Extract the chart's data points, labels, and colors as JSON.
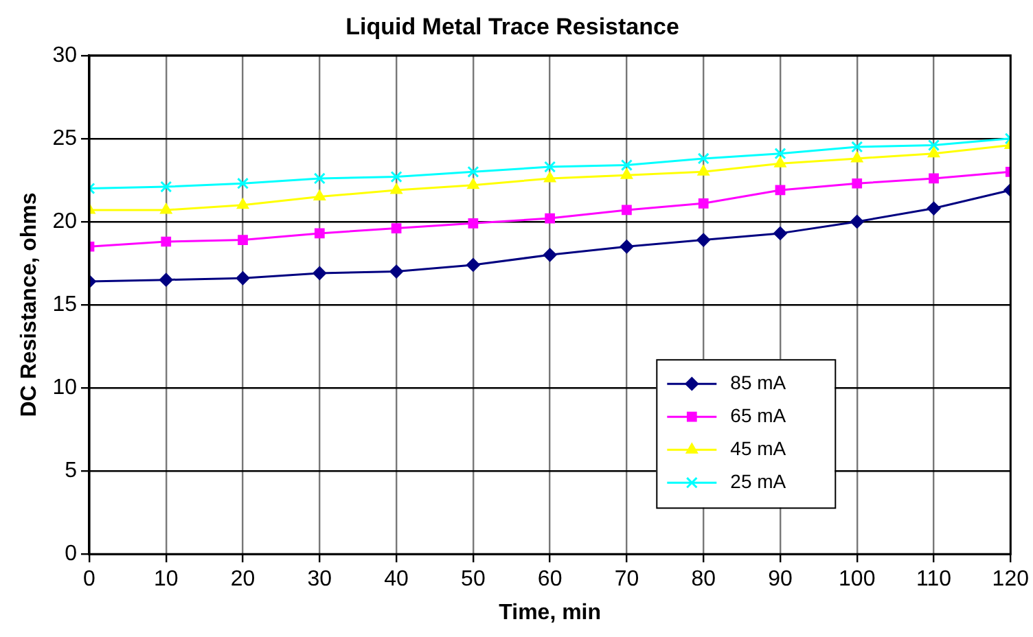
{
  "chart_data": {
    "type": "line",
    "title": "Liquid Metal Trace Resistance",
    "xlabel": "Time, min",
    "ylabel": "DC Resistance, ohms",
    "x": [
      0,
      10,
      20,
      30,
      40,
      50,
      60,
      70,
      80,
      90,
      100,
      110,
      120
    ],
    "xlim": [
      0,
      120
    ],
    "xticks": [
      0,
      10,
      20,
      30,
      40,
      50,
      60,
      70,
      80,
      90,
      100,
      110,
      120
    ],
    "ylim": [
      0,
      30
    ],
    "yticks": [
      0,
      5,
      10,
      15,
      20,
      25,
      30
    ],
    "grid": true,
    "legend": "bottom right",
    "line_style": "solid",
    "series": [
      {
        "name": "85 mA",
        "color": "#000080",
        "marker": "diamond",
        "values": [
          16.4,
          16.5,
          16.6,
          16.9,
          17.0,
          17.4,
          18.0,
          18.5,
          18.9,
          19.3,
          20.0,
          20.8,
          21.9
        ]
      },
      {
        "name": "65 mA",
        "color": "#ff00ff",
        "marker": "square",
        "values": [
          18.5,
          18.8,
          18.9,
          19.3,
          19.6,
          19.9,
          20.2,
          20.7,
          21.1,
          21.9,
          22.3,
          22.6,
          23.0
        ]
      },
      {
        "name": "45 mA",
        "color": "#ffff00",
        "marker": "triangle",
        "values": [
          20.7,
          20.7,
          21.0,
          21.5,
          21.9,
          22.2,
          22.6,
          22.8,
          23.0,
          23.5,
          23.8,
          24.1,
          24.6
        ]
      },
      {
        "name": "25 mA",
        "color": "#00ffff",
        "marker": "cross",
        "values": [
          22.0,
          22.1,
          22.3,
          22.6,
          22.7,
          23.0,
          23.3,
          23.4,
          23.8,
          24.1,
          24.5,
          24.6,
          25.0
        ]
      }
    ]
  }
}
